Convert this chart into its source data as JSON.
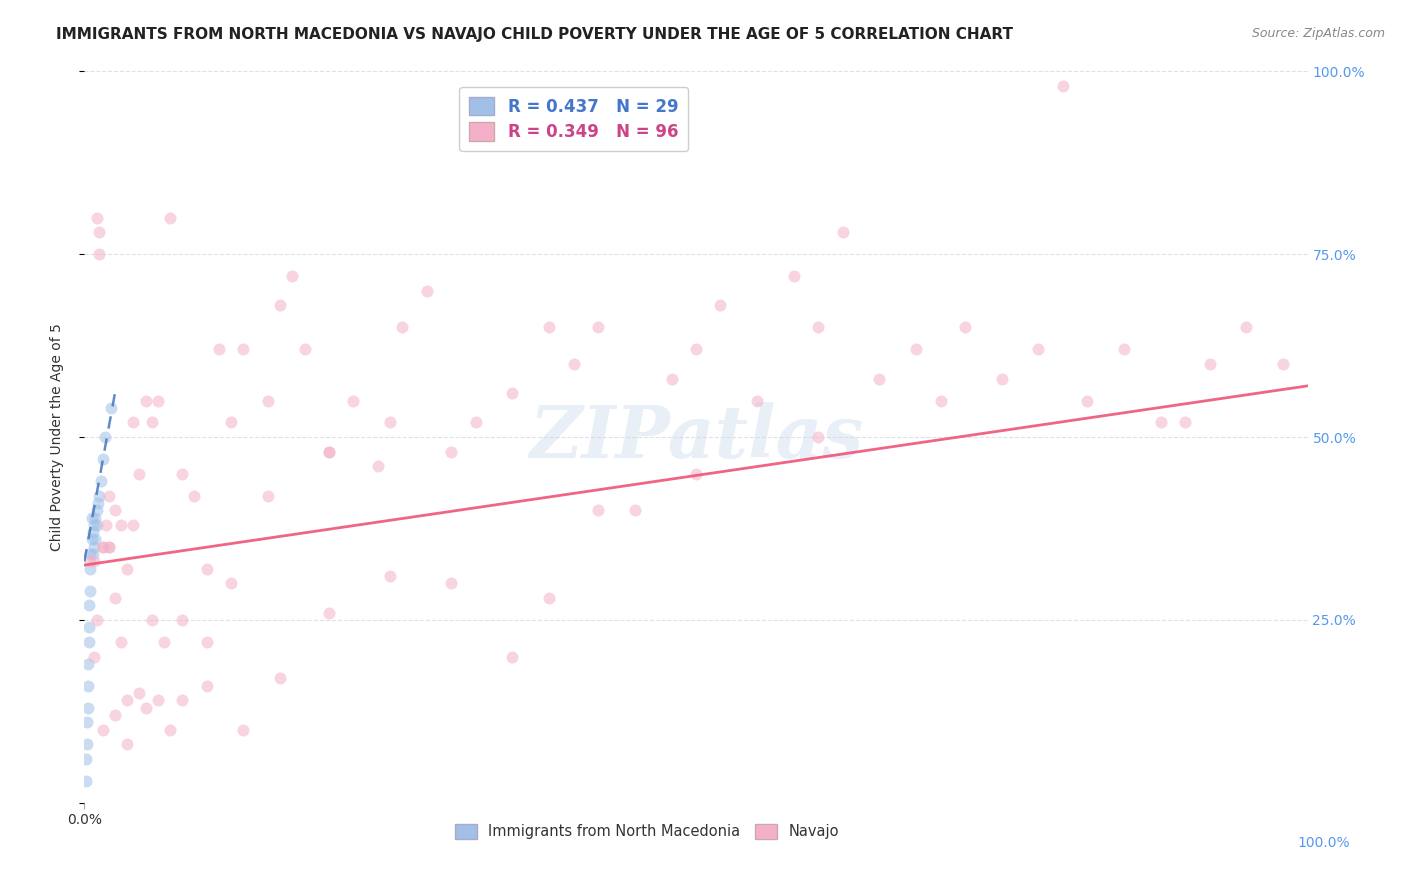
{
  "title": "IMMIGRANTS FROM NORTH MACEDONIA VS NAVAJO CHILD POVERTY UNDER THE AGE OF 5 CORRELATION CHART",
  "source": "Source: ZipAtlas.com",
  "ylabel": "Child Poverty Under the Age of 5",
  "watermark": "ZIPatlas",
  "background_color": "#ffffff",
  "grid_color": "#e0e0e8",
  "xlim": [
    0,
    1
  ],
  "ylim": [
    0,
    1
  ],
  "yticks": [
    0.0,
    0.25,
    0.5,
    0.75,
    1.0
  ],
  "ytick_labels_right": [
    "",
    "25.0%",
    "50.0%",
    "75.0%",
    "100.0%"
  ],
  "legend_entries": [
    {
      "label": "R = 0.437   N = 29",
      "color": "#a8c8f0"
    },
    {
      "label": "R = 0.349   N = 96",
      "color": "#f4b8cc"
    }
  ],
  "legend_labels_bottom": [
    "Immigrants from North Macedonia",
    "Navajo"
  ],
  "blue_scatter_x": [
    0.001,
    0.001,
    0.002,
    0.002,
    0.003,
    0.003,
    0.003,
    0.004,
    0.004,
    0.004,
    0.005,
    0.005,
    0.005,
    0.006,
    0.006,
    0.007,
    0.007,
    0.008,
    0.008,
    0.009,
    0.009,
    0.01,
    0.01,
    0.011,
    0.012,
    0.014,
    0.015,
    0.017,
    0.022
  ],
  "blue_scatter_y": [
    0.03,
    0.06,
    0.08,
    0.11,
    0.13,
    0.16,
    0.19,
    0.22,
    0.24,
    0.27,
    0.29,
    0.32,
    0.34,
    0.36,
    0.39,
    0.34,
    0.37,
    0.35,
    0.38,
    0.36,
    0.39,
    0.38,
    0.4,
    0.41,
    0.42,
    0.44,
    0.47,
    0.5,
    0.54
  ],
  "pink_scatter_x": [
    0.005,
    0.008,
    0.01,
    0.012,
    0.012,
    0.015,
    0.018,
    0.02,
    0.025,
    0.03,
    0.035,
    0.04,
    0.045,
    0.05,
    0.055,
    0.06,
    0.07,
    0.08,
    0.09,
    0.1,
    0.11,
    0.12,
    0.13,
    0.15,
    0.16,
    0.17,
    0.18,
    0.2,
    0.22,
    0.24,
    0.26,
    0.28,
    0.3,
    0.32,
    0.35,
    0.38,
    0.4,
    0.42,
    0.45,
    0.48,
    0.5,
    0.52,
    0.55,
    0.58,
    0.6,
    0.62,
    0.65,
    0.68,
    0.7,
    0.72,
    0.75,
    0.78,
    0.8,
    0.82,
    0.85,
    0.88,
    0.9,
    0.92,
    0.95,
    0.98,
    0.015,
    0.02,
    0.025,
    0.03,
    0.035,
    0.04,
    0.05,
    0.06,
    0.07,
    0.08,
    0.1,
    0.12,
    0.15,
    0.2,
    0.25,
    0.3,
    0.38,
    0.42,
    0.5,
    0.6,
    0.008,
    0.01,
    0.015,
    0.02,
    0.025,
    0.035,
    0.045,
    0.055,
    0.065,
    0.08,
    0.1,
    0.13,
    0.16,
    0.2,
    0.25,
    0.35
  ],
  "pink_scatter_y": [
    0.33,
    0.33,
    0.8,
    0.75,
    0.78,
    0.35,
    0.38,
    0.35,
    0.4,
    0.38,
    0.14,
    0.52,
    0.45,
    0.13,
    0.52,
    0.14,
    0.1,
    0.14,
    0.42,
    0.22,
    0.62,
    0.52,
    0.62,
    0.55,
    0.68,
    0.72,
    0.62,
    0.48,
    0.55,
    0.46,
    0.65,
    0.7,
    0.48,
    0.52,
    0.56,
    0.65,
    0.6,
    0.65,
    0.4,
    0.58,
    0.62,
    0.68,
    0.55,
    0.72,
    0.65,
    0.78,
    0.58,
    0.62,
    0.55,
    0.65,
    0.58,
    0.62,
    0.98,
    0.55,
    0.62,
    0.52,
    0.52,
    0.6,
    0.65,
    0.6,
    0.35,
    0.42,
    0.28,
    0.22,
    0.32,
    0.38,
    0.55,
    0.55,
    0.8,
    0.25,
    0.32,
    0.3,
    0.42,
    0.48,
    0.52,
    0.3,
    0.28,
    0.4,
    0.45,
    0.5,
    0.2,
    0.25,
    0.1,
    0.35,
    0.12,
    0.08,
    0.15,
    0.25,
    0.22,
    0.45,
    0.16,
    0.1,
    0.17,
    0.26,
    0.31,
    0.2
  ],
  "blue_line_x": [
    0.0,
    0.025
  ],
  "blue_line_y": [
    0.33,
    0.56
  ],
  "pink_line_x": [
    0.0,
    1.0
  ],
  "pink_line_y": [
    0.325,
    0.57
  ],
  "scatter_size": 75,
  "scatter_alpha": 0.55,
  "blue_color": "#a0c0e8",
  "pink_color": "#f4b0c8",
  "blue_line_color": "#4477bb",
  "pink_line_color": "#ee5577",
  "title_fontsize": 11,
  "axis_label_fontsize": 10,
  "tick_fontsize": 10,
  "legend_fontsize": 12,
  "source_fontsize": 9
}
